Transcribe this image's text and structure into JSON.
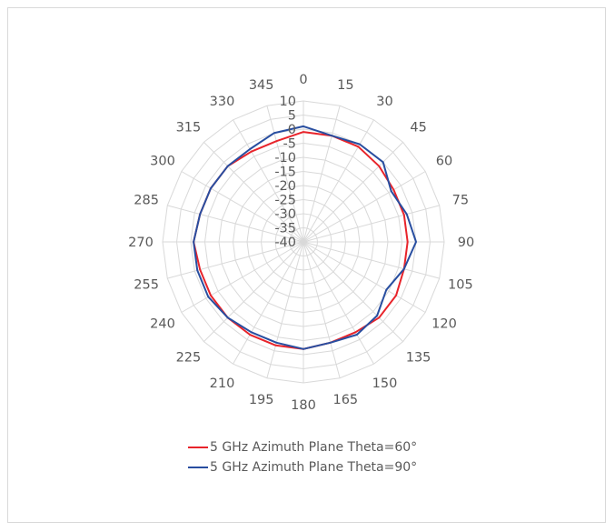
{
  "chart_data": {
    "type": "radar",
    "angles": [
      0,
      15,
      30,
      45,
      60,
      75,
      90,
      105,
      120,
      135,
      150,
      165,
      180,
      195,
      210,
      225,
      240,
      255,
      270,
      285,
      300,
      315,
      330,
      345
    ],
    "angle_labels": [
      "0",
      "15",
      "30",
      "45",
      "60",
      "75",
      "90",
      "105",
      "120",
      "135",
      "150",
      "165",
      "180",
      "195",
      "210",
      "225",
      "240",
      "255",
      "270",
      "285",
      "300",
      "315",
      "330",
      "345"
    ],
    "radial_ticks": [
      10,
      5,
      0,
      -5,
      -10,
      -15,
      -20,
      -25,
      -30,
      -35,
      -40
    ],
    "radial_tick_labels": [
      "10",
      "5",
      "0",
      "-5",
      "-10",
      "-15",
      "-20",
      "-25",
      "-30",
      "-35",
      "-40"
    ],
    "rlim": [
      -40,
      10
    ],
    "grid": true,
    "legend_position": "bottom",
    "series": [
      {
        "name": "5 GHz Azimuth Plane Theta=60°",
        "color": "#e8242b",
        "values": [
          -1,
          -1,
          -1,
          -2,
          -3,
          -3,
          -3,
          -3,
          -2,
          -2,
          -3,
          -3,
          -2,
          -2,
          -2,
          -2,
          -2,
          -2,
          -1,
          -2,
          -2,
          -2,
          -3,
          -3
        ]
      },
      {
        "name": "5 GHz Azimuth Plane Theta=90°",
        "color": "#284ea0",
        "values": [
          1,
          -1,
          0,
          0,
          -4,
          -2,
          0,
          -3,
          -6,
          -3,
          -2,
          -3,
          -2,
          -3,
          -3,
          -2,
          -1,
          -1,
          -1,
          -2,
          -2,
          -2,
          -2,
          0
        ]
      }
    ]
  }
}
